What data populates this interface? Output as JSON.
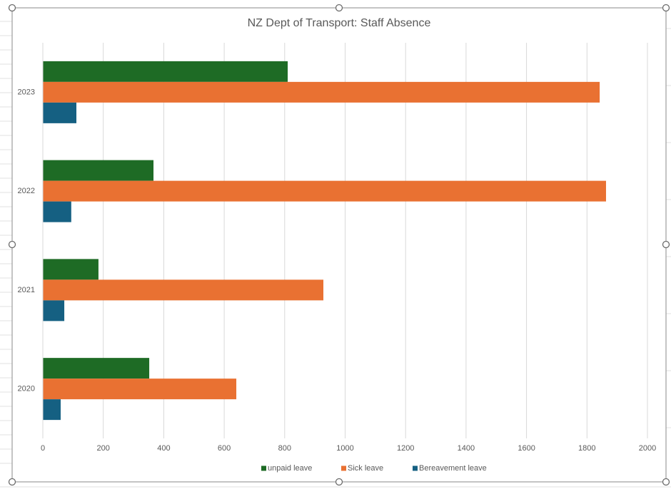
{
  "chart_data": {
    "type": "bar",
    "orientation": "horizontal",
    "title": "NZ Dept of Transport: Staff Absence",
    "categories": [
      "2020",
      "2021",
      "2022",
      "2023"
    ],
    "series": [
      {
        "name": "unpaid leave",
        "color": "#1e6b25",
        "values": [
          352,
          184,
          366,
          810
        ]
      },
      {
        "name": "Sick leave",
        "color": "#e97132",
        "values": [
          640,
          928,
          1863,
          1842
        ]
      },
      {
        "name": "Bereavement leave",
        "color": "#156082",
        "values": [
          59,
          71,
          94,
          111
        ]
      }
    ],
    "xlim": [
      0,
      2000
    ],
    "xticks": [
      0,
      200,
      400,
      600,
      800,
      1000,
      1200,
      1400,
      1600,
      1800,
      2000
    ],
    "grid": true,
    "legend": "bottom"
  }
}
